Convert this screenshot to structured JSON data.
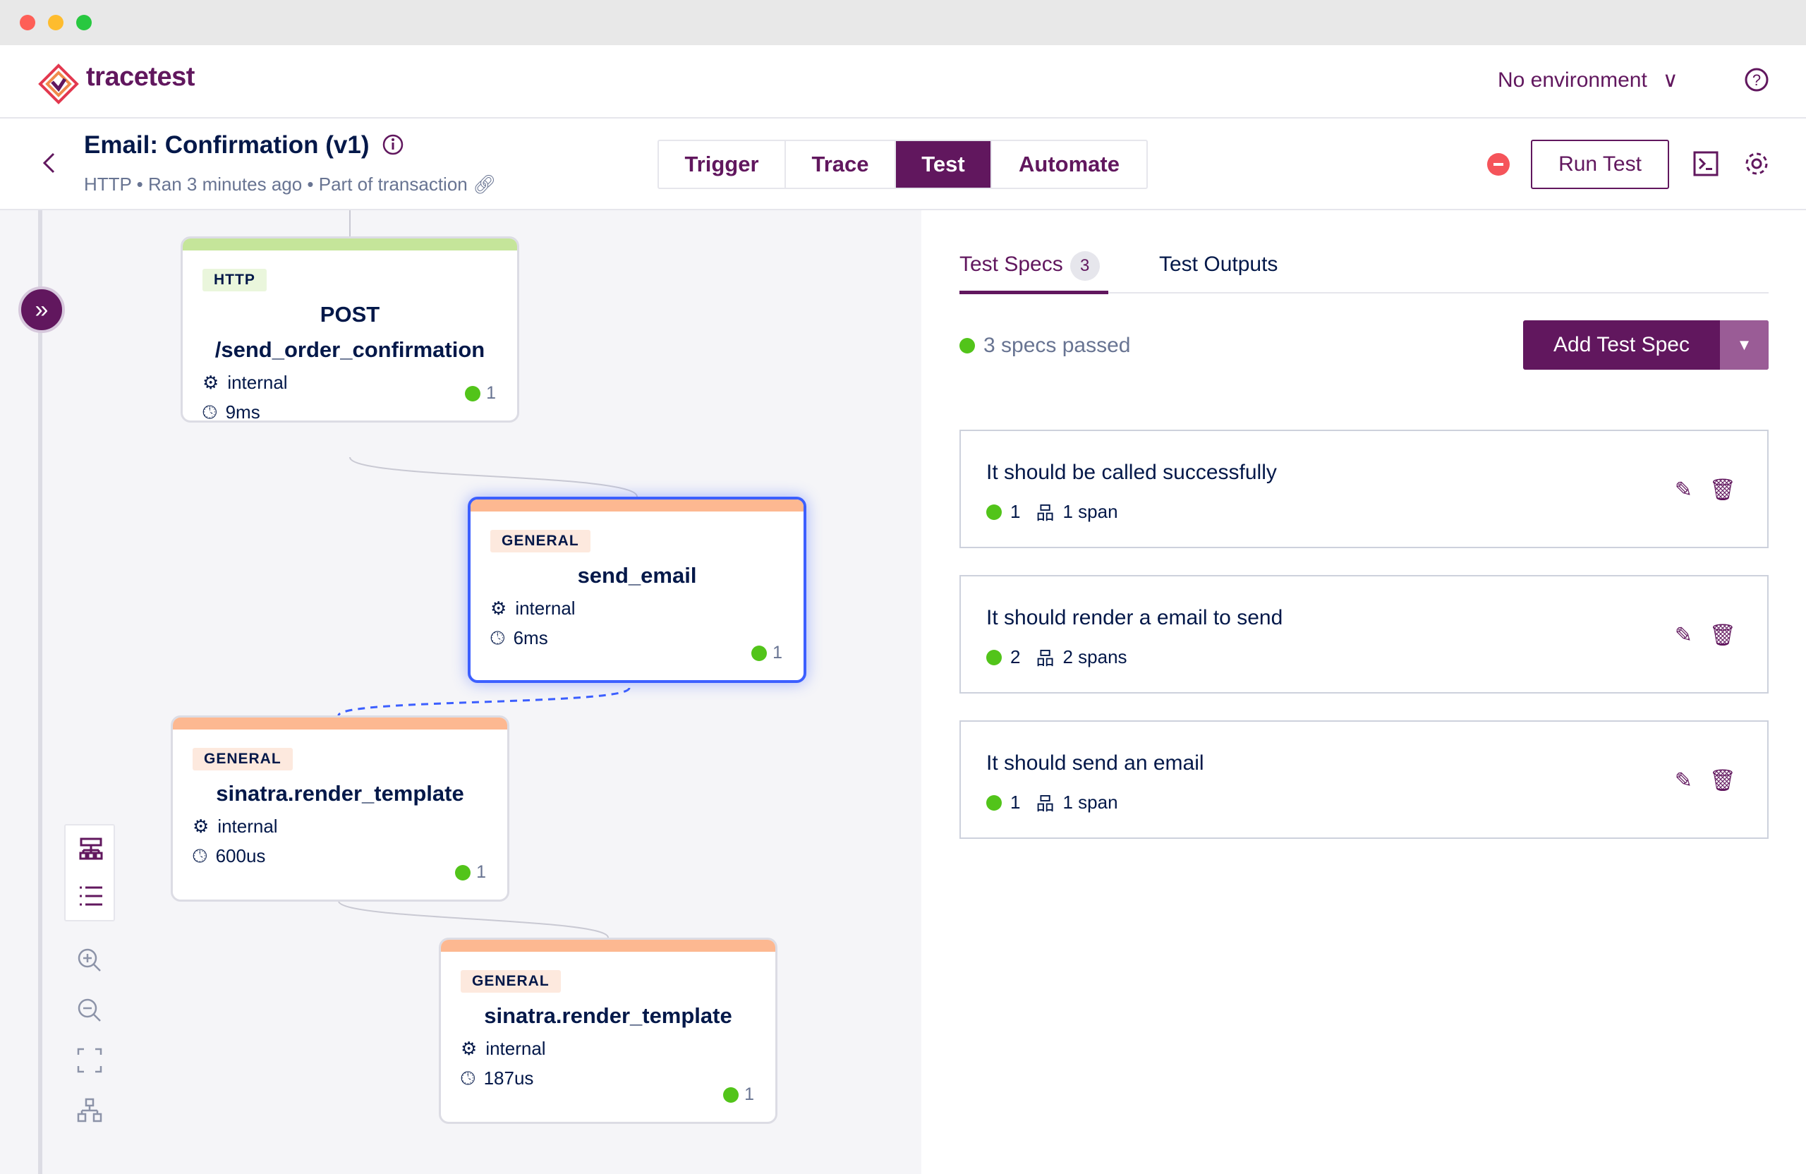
{
  "app": {
    "name": "tracetest"
  },
  "header": {
    "environment": "No environment"
  },
  "test": {
    "title": "Email: Confirmation (v1)",
    "subtitle": "HTTP • Ran 3 minutes ago • Part of transaction"
  },
  "tabs": [
    {
      "label": "Trigger"
    },
    {
      "label": "Trace"
    },
    {
      "label": "Test",
      "active": true
    },
    {
      "label": "Automate"
    }
  ],
  "actions": {
    "run_test": "Run Test"
  },
  "nodes": [
    {
      "badge": "HTTP",
      "title": "POST /send_order_confirmation",
      "kind": "internal",
      "duration": "9ms",
      "checks": "1",
      "color": "#c5e59a"
    },
    {
      "badge": "GENERAL",
      "title": "send_email",
      "kind": "internal",
      "duration": "6ms",
      "checks": "1",
      "color": "#fdb891",
      "selected": true
    },
    {
      "badge": "GENERAL",
      "title": "sinatra.render_template",
      "kind": "internal",
      "duration": "600us",
      "checks": "1",
      "color": "#fdb891"
    },
    {
      "badge": "GENERAL",
      "title": "sinatra.render_template",
      "kind": "internal",
      "duration": "187us",
      "checks": "1",
      "color": "#fdb891"
    }
  ],
  "panel": {
    "tabs": [
      {
        "label": "Test Specs",
        "count": "3",
        "active": true
      },
      {
        "label": "Test Outputs"
      }
    ],
    "status": "3 specs passed",
    "add_button": "Add Test Spec",
    "specs": [
      {
        "title": "It should be called successfully",
        "passed": "1",
        "spans": "1 span"
      },
      {
        "title": "It should render a email to send",
        "passed": "2",
        "spans": "2 spans"
      },
      {
        "title": "It should send an email",
        "passed": "1",
        "spans": "1 span"
      }
    ]
  },
  "colors": {
    "brand": "#61175e",
    "pass": "#52c41a",
    "selected": "#3c5fff",
    "fail": "#f5545a"
  }
}
